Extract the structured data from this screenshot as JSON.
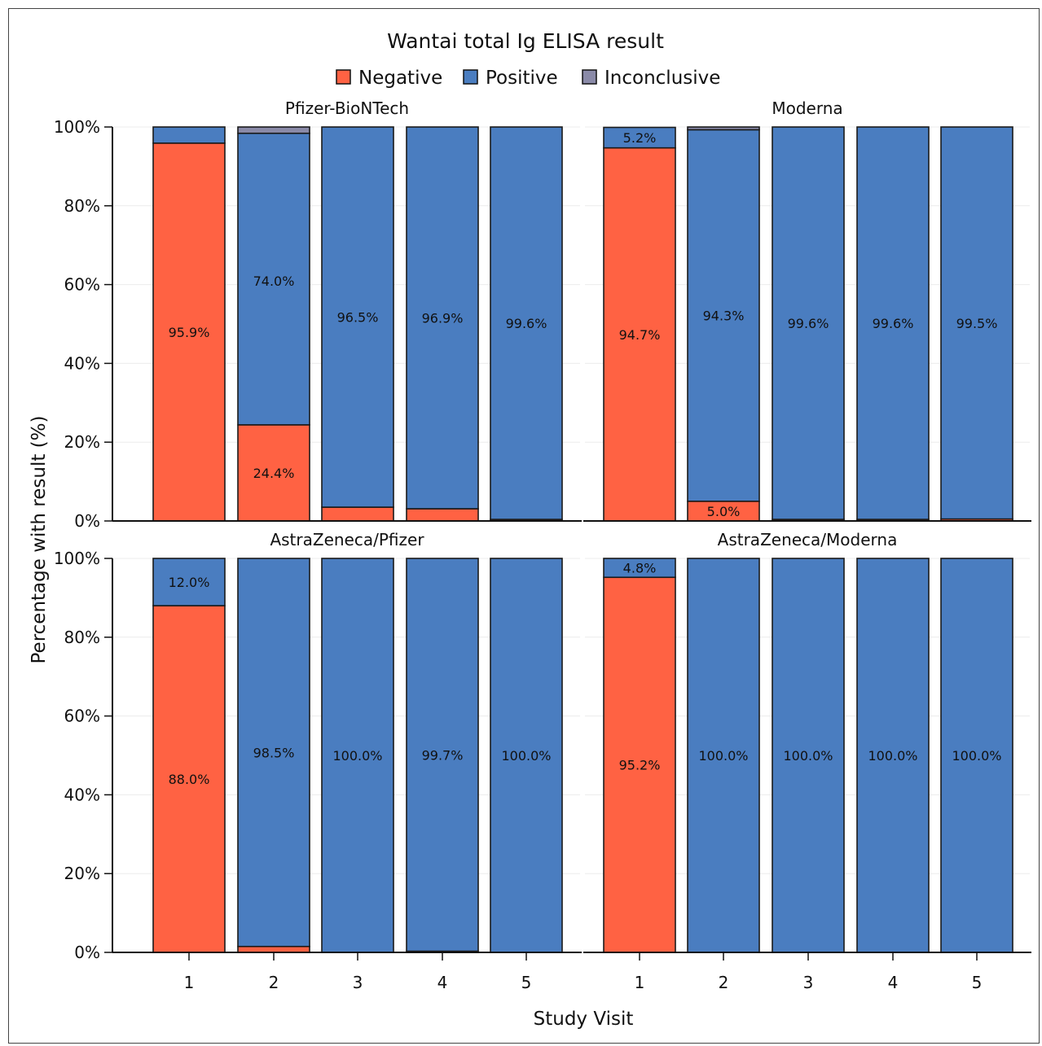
{
  "chart_data": {
    "type": "bar",
    "stacked": true,
    "title": "Wantai total Ig ELISA result",
    "xlabel": "Study Visit",
    "ylabel": "Percentage with result (%)",
    "ylim": [
      0,
      100
    ],
    "yticks": [
      "0%",
      "20%",
      "40%",
      "60%",
      "80%",
      "100%"
    ],
    "grid": "horizontal, light",
    "legend_position": "top",
    "categories": [
      "1",
      "2",
      "3",
      "4",
      "5"
    ],
    "legend": [
      {
        "name": "Negative",
        "color": "#FF6243"
      },
      {
        "name": "Positive",
        "color": "#4A7DC0"
      },
      {
        "name": "Inconclusive",
        "color": "#8A8AA8"
      }
    ],
    "panels": [
      {
        "title": "Pfizer-BioNTech",
        "series": [
          {
            "name": "Negative",
            "values": [
              95.9,
              24.4,
              3.5,
              3.1,
              0.4
            ]
          },
          {
            "name": "Positive",
            "values": [
              4.1,
              74.0,
              96.5,
              96.9,
              99.6
            ]
          },
          {
            "name": "Inconclusive",
            "values": [
              0,
              1.6,
              0,
              0,
              0
            ]
          }
        ],
        "labels": [
          {
            "i": 0,
            "series": "Negative",
            "text": "95.9%"
          },
          {
            "i": 1,
            "series": "Negative",
            "text": "24.4%"
          },
          {
            "i": 1,
            "series": "Positive",
            "text": "74.0%",
            "y": 61
          },
          {
            "i": 2,
            "series": "Positive",
            "text": "96.5%"
          },
          {
            "i": 3,
            "series": "Positive",
            "text": "96.9%"
          },
          {
            "i": 4,
            "series": "Positive",
            "text": "99.6%"
          }
        ]
      },
      {
        "title": "Moderna",
        "series": [
          {
            "name": "Negative",
            "values": [
              94.7,
              5.0,
              0.4,
              0.4,
              0.5
            ]
          },
          {
            "name": "Positive",
            "values": [
              5.2,
              94.3,
              99.6,
              99.6,
              99.5
            ]
          },
          {
            "name": "Inconclusive",
            "values": [
              0,
              0.7,
              0,
              0,
              0
            ]
          }
        ],
        "labels": [
          {
            "i": 0,
            "series": "Negative",
            "text": "94.7%"
          },
          {
            "i": 0,
            "series": "Positive",
            "text": "5.2%"
          },
          {
            "i": 1,
            "series": "Negative",
            "text": "5.0%"
          },
          {
            "i": 1,
            "series": "Positive",
            "text": "94.3%"
          },
          {
            "i": 2,
            "series": "Positive",
            "text": "99.6%"
          },
          {
            "i": 3,
            "series": "Positive",
            "text": "99.6%"
          },
          {
            "i": 4,
            "series": "Positive",
            "text": "99.5%"
          }
        ]
      },
      {
        "title": "AstraZeneca/Pfizer",
        "series": [
          {
            "name": "Negative",
            "values": [
              88.0,
              1.5,
              0,
              0.3,
              0
            ]
          },
          {
            "name": "Positive",
            "values": [
              12.0,
              98.5,
              100.0,
              99.7,
              100.0
            ]
          },
          {
            "name": "Inconclusive",
            "values": [
              0,
              0,
              0,
              0,
              0
            ]
          }
        ],
        "labels": [
          {
            "i": 0,
            "series": "Negative",
            "text": "88.0%"
          },
          {
            "i": 0,
            "series": "Positive",
            "text": "12.0%"
          },
          {
            "i": 1,
            "series": "Positive",
            "text": "98.5%"
          },
          {
            "i": 2,
            "series": "Positive",
            "text": "100.0%"
          },
          {
            "i": 3,
            "series": "Positive",
            "text": "99.7%"
          },
          {
            "i": 4,
            "series": "Positive",
            "text": "100.0%"
          }
        ]
      },
      {
        "title": "AstraZeneca/Moderna",
        "series": [
          {
            "name": "Negative",
            "values": [
              95.2,
              0,
              0,
              0,
              0
            ]
          },
          {
            "name": "Positive",
            "values": [
              4.8,
              100.0,
              100.0,
              100.0,
              100.0
            ]
          },
          {
            "name": "Inconclusive",
            "values": [
              0,
              0,
              0,
              0,
              0
            ]
          }
        ],
        "labels": [
          {
            "i": 0,
            "series": "Negative",
            "text": "95.2%"
          },
          {
            "i": 0,
            "series": "Positive",
            "text": "4.8%"
          },
          {
            "i": 1,
            "series": "Positive",
            "text": "100.0%"
          },
          {
            "i": 2,
            "series": "Positive",
            "text": "100.0%"
          },
          {
            "i": 3,
            "series": "Positive",
            "text": "100.0%"
          },
          {
            "i": 4,
            "series": "Positive",
            "text": "100.0%"
          }
        ]
      }
    ]
  }
}
